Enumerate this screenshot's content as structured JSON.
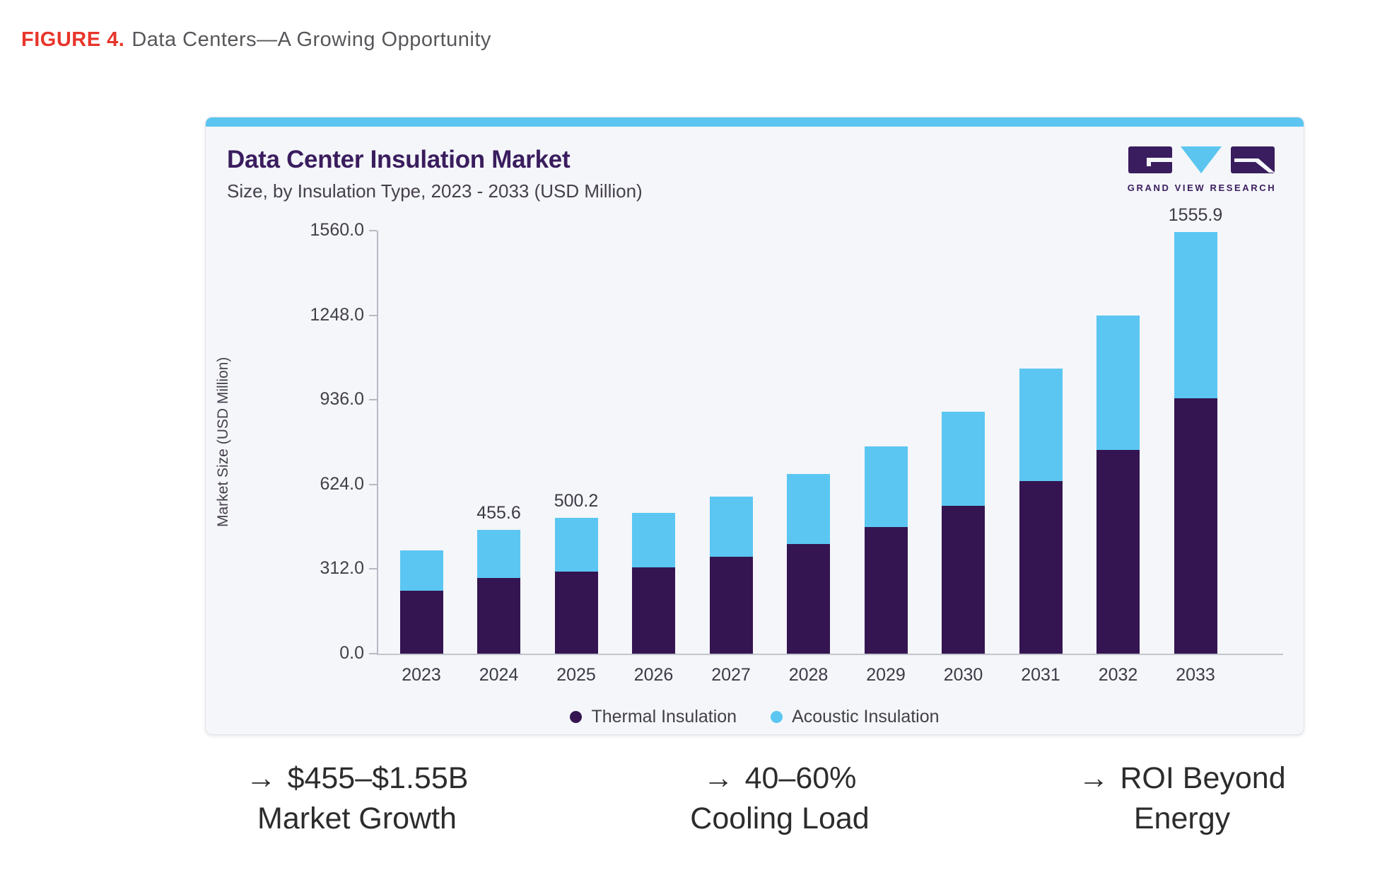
{
  "figure": {
    "label": "FIGURE 4.",
    "title": "Data Centers—A Growing Opportunity"
  },
  "card": {
    "title": "Data Center Insulation Market",
    "subtitle": "Size, by Insulation Type, 2023 - 2033 (USD Million)",
    "logo_text": "GRAND VIEW RESEARCH"
  },
  "chart_data": {
    "type": "bar",
    "stacked": true,
    "title": "Data Center Insulation Market",
    "subtitle": "Size, by Insulation Type, 2023 - 2033 (USD Million)",
    "xlabel": "",
    "ylabel": "Market Size (USD Million)",
    "ylim": [
      0,
      1560
    ],
    "y_ticks": [
      0,
      312,
      624,
      936,
      1248,
      1560
    ],
    "y_tick_labels": [
      "0.0",
      "312.0",
      "624.0",
      "936.0",
      "1248.0",
      "1560.0"
    ],
    "grid": false,
    "legend_position": "bottom",
    "categories": [
      "2023",
      "2024",
      "2025",
      "2026",
      "2027",
      "2028",
      "2029",
      "2030",
      "2031",
      "2032",
      "2033"
    ],
    "series": [
      {
        "name": "Thermal Insulation",
        "color": "#341551",
        "values": [
          233,
          280.0,
          303.0,
          319,
          358,
          404,
          466,
          544,
          637,
          752,
          941.0
        ]
      },
      {
        "name": "Acoustic Insulation",
        "color": "#5BC6F2",
        "values": [
          149,
          175.6,
          197.2,
          200,
          222,
          259,
          299,
          349,
          414,
          494,
          614.9
        ]
      }
    ],
    "totals": [
      382,
      455.6,
      500.2,
      519,
      580,
      663,
      765,
      893,
      1051,
      1246,
      1555.9
    ],
    "bar_labels": {
      "2024": "455.6",
      "2025": "500.2",
      "2033": "1555.9"
    }
  },
  "callouts": [
    {
      "arrow": "→",
      "line1": "$455–$1.55B",
      "line2": "Market Growth"
    },
    {
      "arrow": "→",
      "line1": "40–60%",
      "line2": "Cooling Load"
    },
    {
      "arrow": "→",
      "line1": "ROI Beyond",
      "line2": "Energy"
    }
  ],
  "colors": {
    "figure_red": "#E8352B",
    "accent_blue": "#5BC5F0",
    "title_purple": "#3A1D5E",
    "thermal_purple": "#341551",
    "acoustic_blue": "#5BC6F2",
    "card_background": "#F4F6F9"
  }
}
